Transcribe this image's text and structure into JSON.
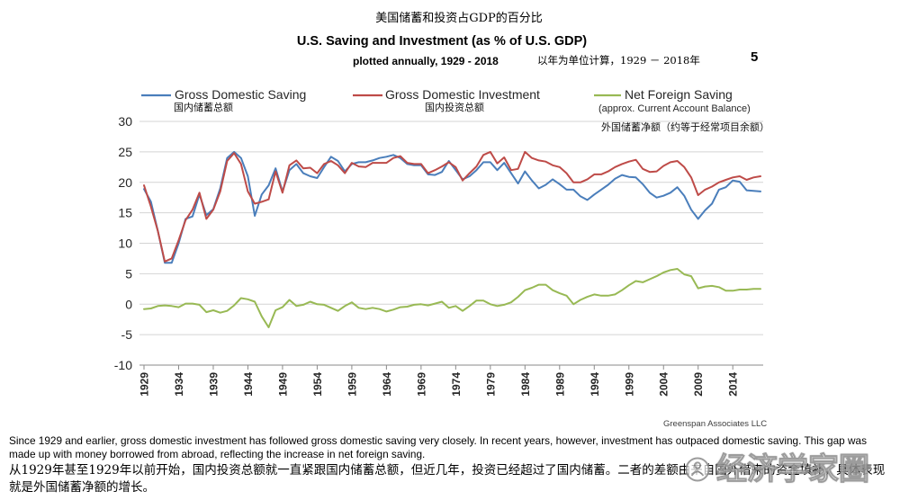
{
  "slide_number": "5",
  "chart_data": {
    "type": "line",
    "title_zh": "美国储蓄和投资占GDP的百分比",
    "title": "U.S. Saving and Investment (as % of U.S. GDP)",
    "subtitle": "plotted annually, 1929 - 2018",
    "subtitle_zh": "以年为单位计算，1929 － 2018年",
    "source": "Greenspan Associates LLC",
    "xlim": [
      1929,
      2018
    ],
    "ylim": [
      -10,
      30
    ],
    "yticks": [
      30,
      25,
      20,
      15,
      10,
      5,
      0,
      -5,
      -10
    ],
    "xticks": [
      "1929",
      "1934",
      "1939",
      "1944",
      "1949",
      "1954",
      "1959",
      "1964",
      "1969",
      "1974",
      "1979",
      "1984",
      "1989",
      "1994",
      "1999",
      "2004",
      "2009",
      "2014"
    ],
    "grid": "horizontal",
    "legend_position": "top",
    "x": [
      1929,
      1930,
      1931,
      1932,
      1933,
      1934,
      1935,
      1936,
      1937,
      1938,
      1939,
      1940,
      1941,
      1942,
      1943,
      1944,
      1945,
      1946,
      1947,
      1948,
      1949,
      1950,
      1951,
      1952,
      1953,
      1954,
      1955,
      1956,
      1957,
      1958,
      1959,
      1960,
      1961,
      1962,
      1963,
      1964,
      1965,
      1966,
      1967,
      1968,
      1969,
      1970,
      1971,
      1972,
      1973,
      1974,
      1975,
      1976,
      1977,
      1978,
      1979,
      1980,
      1981,
      1982,
      1983,
      1984,
      1985,
      1986,
      1987,
      1988,
      1989,
      1990,
      1991,
      1992,
      1993,
      1994,
      1995,
      1996,
      1997,
      1998,
      1999,
      2000,
      2001,
      2002,
      2003,
      2004,
      2005,
      2006,
      2007,
      2008,
      2009,
      2010,
      2011,
      2012,
      2013,
      2014,
      2015,
      2016,
      2017,
      2018
    ],
    "series": [
      {
        "name": "Gross Domestic Saving",
        "name_zh": "国内储蓄总额",
        "color": "#4A7EBB",
        "values": [
          18.9,
          16.8,
          12.0,
          6.8,
          6.8,
          10.0,
          14.0,
          14.4,
          18.0,
          14.6,
          15.6,
          19.0,
          24.0,
          25.0,
          24.0,
          21.0,
          14.5,
          18.0,
          19.5,
          22.3,
          18.5,
          22.0,
          23.0,
          21.5,
          21.0,
          20.7,
          22.5,
          24.2,
          23.5,
          21.8,
          23.0,
          23.3,
          23.3,
          23.6,
          24.0,
          24.2,
          24.5,
          24.0,
          23.0,
          22.8,
          22.8,
          21.3,
          21.2,
          21.7,
          23.5,
          22.0,
          20.5,
          21.0,
          22.0,
          23.3,
          23.3,
          22.0,
          23.2,
          21.5,
          19.8,
          21.8,
          20.3,
          19.0,
          19.6,
          20.5,
          19.7,
          18.8,
          18.8,
          17.7,
          17.1,
          18.0,
          18.8,
          19.6,
          20.6,
          21.2,
          20.9,
          20.8,
          19.7,
          18.3,
          17.5,
          17.8,
          18.3,
          19.2,
          17.8,
          15.5,
          14.0,
          15.4,
          16.5,
          18.8,
          19.2,
          20.3,
          20.1,
          18.7,
          18.6,
          18.5
        ]
      },
      {
        "name": "Gross Domestic Investment",
        "name_zh": "国内投资总额",
        "color": "#BE4B48",
        "values": [
          19.5,
          16.0,
          12.0,
          7.0,
          7.5,
          10.5,
          13.8,
          15.5,
          18.3,
          14.0,
          15.5,
          18.5,
          23.5,
          24.8,
          23.0,
          18.5,
          16.5,
          16.8,
          17.2,
          21.8,
          18.3,
          22.8,
          23.6,
          22.3,
          22.4,
          21.5,
          23.0,
          23.5,
          22.8,
          21.5,
          23.2,
          22.6,
          22.5,
          23.2,
          23.2,
          23.2,
          24.0,
          24.3,
          23.2,
          23.0,
          23.0,
          21.5,
          22.0,
          22.6,
          23.3,
          22.5,
          20.3,
          21.5,
          22.6,
          24.5,
          25.0,
          23.1,
          24.1,
          22.0,
          22.2,
          25.0,
          24.0,
          23.6,
          23.4,
          22.8,
          22.5,
          21.5,
          20.0,
          20.0,
          20.5,
          21.3,
          21.3,
          21.8,
          22.5,
          23.0,
          23.4,
          23.7,
          22.2,
          21.7,
          21.8,
          22.7,
          23.3,
          23.5,
          22.5,
          20.8,
          17.9,
          18.8,
          19.3,
          20.0,
          20.4,
          20.8,
          21.0,
          20.4,
          20.8,
          21.0
        ]
      },
      {
        "name": "Net Foreign Saving",
        "note": "(approx. Current Account Balance)",
        "name_zh": "外国储蓄净额（约等于经常项目余额）",
        "color": "#98B954",
        "values": [
          -0.8,
          -0.7,
          -0.3,
          -0.2,
          -0.3,
          -0.5,
          0.1,
          0.1,
          -0.1,
          -1.3,
          -1.0,
          -1.4,
          -1.1,
          -0.2,
          1.0,
          0.8,
          0.4,
          -2.0,
          -3.8,
          -1.0,
          -0.5,
          0.7,
          -0.3,
          -0.1,
          0.4,
          0.0,
          -0.1,
          -0.6,
          -1.1,
          -0.3,
          0.3,
          -0.6,
          -0.8,
          -0.6,
          -0.8,
          -1.2,
          -0.9,
          -0.5,
          -0.4,
          -0.1,
          0.0,
          -0.2,
          0.1,
          0.4,
          -0.6,
          -0.3,
          -1.1,
          -0.3,
          0.6,
          0.6,
          0.0,
          -0.3,
          -0.1,
          0.3,
          1.2,
          2.3,
          2.7,
          3.2,
          3.2,
          2.3,
          1.8,
          1.4,
          0.0,
          0.7,
          1.2,
          1.6,
          1.4,
          1.4,
          1.6,
          2.3,
          3.1,
          3.8,
          3.6,
          4.1,
          4.6,
          5.2,
          5.6,
          5.8,
          4.9,
          4.6,
          2.6,
          2.9,
          3.0,
          2.8,
          2.2,
          2.2,
          2.4,
          2.4,
          2.5,
          2.5
        ]
      }
    ]
  },
  "notes": {
    "en": "Since 1929 and earlier, gross domestic investment has followed gross domestic saving very closely. In recent years, however, investment has outpaced domestic saving. This gap was made up with money borrowed from abroad, reflecting the increase in net foreign saving.",
    "zh": "从1929年甚至1929年以前开始，国内投资总额就一直紧跟国内储蓄总额，但近几年，投资已经超过了国内储蓄。二者的差额由来自国外借来的资金填补，具体表现就是外国储蓄净额的增长。"
  },
  "watermark": {
    "text": "经济学家圈",
    "icon": "circle-logo-icon"
  }
}
